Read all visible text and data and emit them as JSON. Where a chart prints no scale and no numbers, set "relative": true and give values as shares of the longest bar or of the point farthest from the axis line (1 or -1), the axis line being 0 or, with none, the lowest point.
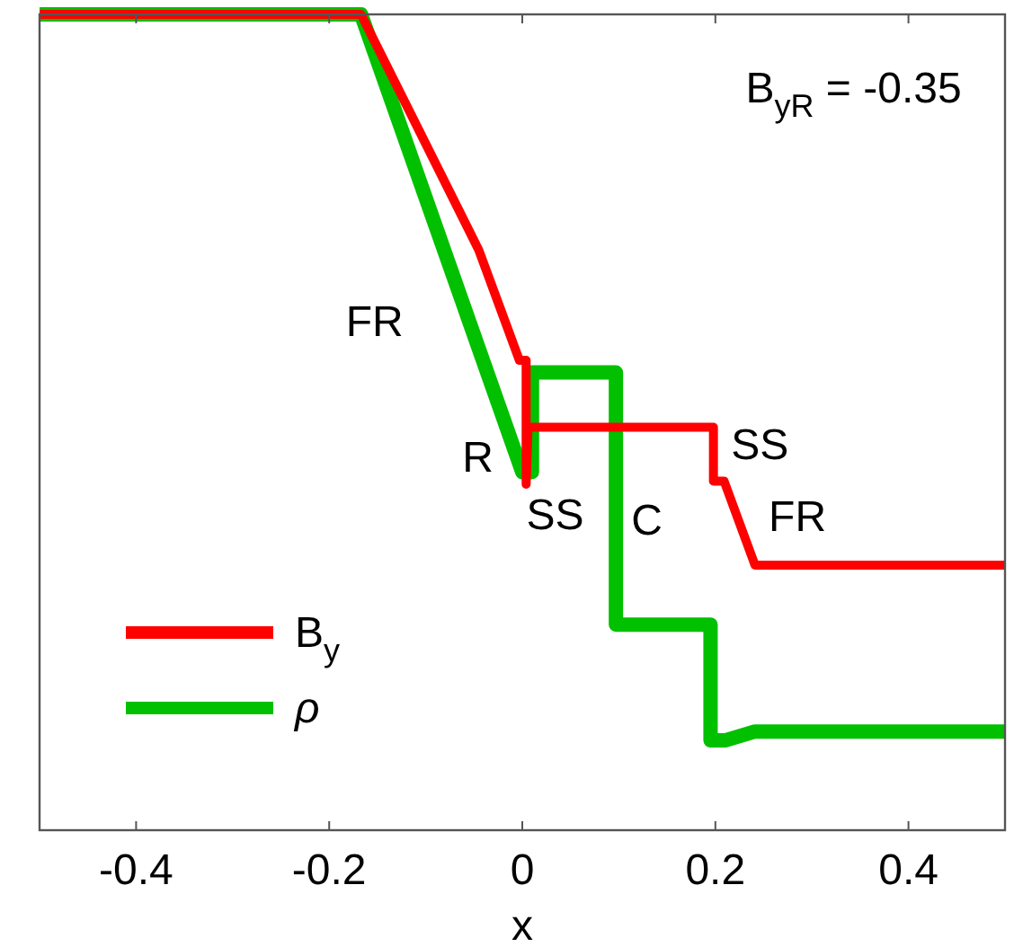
{
  "chart_data": {
    "type": "line",
    "xlabel": "x",
    "relative": true,
    "xlim": [
      -0.5,
      0.5
    ],
    "xticks": [
      -0.4,
      -0.2,
      0,
      0.2,
      0.4
    ],
    "grid": false,
    "legend": "bottom left",
    "marker": "none",
    "line_style": "solid",
    "series": [
      {
        "name": "B$_{y}$",
        "color": "#ff0000",
        "x": [
          -0.5,
          -0.167,
          -0.045,
          -0.003,
          0.004,
          0.004,
          0.006,
          0.198,
          0.198,
          0.209,
          0.241,
          0.5
        ],
        "values": [
          1,
          1,
          0.711,
          0.576,
          0.576,
          0.424,
          0.494,
          0.494,
          0.428,
          0.428,
          0.325,
          0.325
        ]
      },
      {
        "name": "ρ",
        "color": "#00c000",
        "x": [
          -0.5,
          -0.167,
          0.0,
          0.01,
          0.01,
          0.097,
          0.097,
          0.195,
          0.195,
          0.21,
          0.241,
          0.5
        ],
        "values": [
          1,
          1,
          0.439,
          0.439,
          0.561,
          0.561,
          0.252,
          0.252,
          0.11,
          0.11,
          0.121,
          0.121
        ]
      }
    ],
    "annotations": [
      "B$_{yR}$ = -0.35",
      "FR",
      "R",
      "SS",
      "C",
      "SS",
      "FR"
    ]
  }
}
